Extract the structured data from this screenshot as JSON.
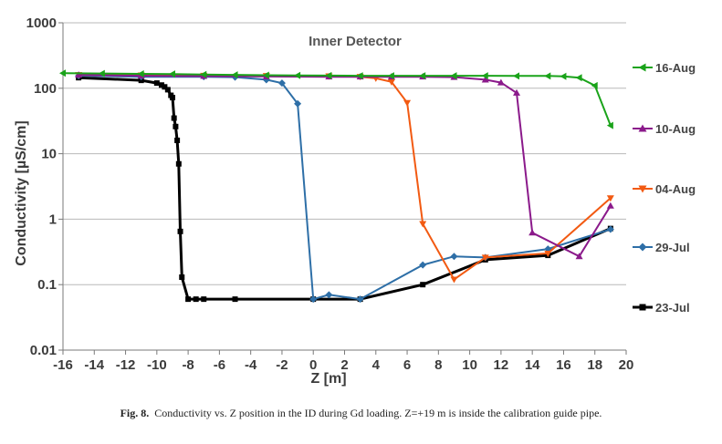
{
  "chart_data": {
    "type": "line",
    "title": "Inner Detector",
    "xlabel": "Z [m]",
    "ylabel": "Conductivity [µS/cm]",
    "xlim": [
      -16,
      20
    ],
    "ylim": [
      0.01,
      1000
    ],
    "yscale": "log",
    "x_ticks": [
      -16,
      -14,
      -12,
      -10,
      -8,
      -6,
      -4,
      -2,
      0,
      2,
      4,
      6,
      8,
      10,
      12,
      14,
      16,
      18,
      20
    ],
    "y_ticks": [
      0.01,
      0.1,
      1,
      10,
      100,
      1000
    ],
    "y_tick_labels": [
      "0.01",
      "0.1",
      "1",
      "10",
      "100",
      "1000"
    ],
    "grid": "horizontal",
    "legend_position": "right",
    "series": [
      {
        "name": "16-Aug",
        "color": "#1aa31a",
        "marker": "triangle-left",
        "x": [
          -16,
          -13.5,
          -11,
          -9,
          -7,
          -5,
          -3,
          -1,
          1,
          3,
          5,
          7,
          9,
          11,
          13,
          15,
          16,
          17,
          18,
          19
        ],
        "y": [
          170,
          168,
          166,
          165,
          162,
          160,
          158,
          157,
          156,
          155,
          155,
          155,
          155,
          155,
          154,
          154,
          152,
          145,
          110,
          27
        ]
      },
      {
        "name": "10-Aug",
        "color": "#8b1a8b",
        "marker": "triangle-up",
        "x": [
          -15,
          -11,
          -7,
          -3,
          1,
          3,
          5,
          7,
          9,
          11,
          12,
          13,
          14,
          17,
          19
        ],
        "y": [
          160,
          155,
          153,
          151,
          150,
          150,
          150,
          150,
          148,
          135,
          122,
          85,
          0.62,
          0.27,
          1.6
        ]
      },
      {
        "name": "04-Aug",
        "color": "#f25a12",
        "marker": "triangle-down",
        "x": [
          -15,
          -11,
          -7,
          -3,
          1,
          3,
          4,
          5,
          6,
          7,
          9,
          11,
          15,
          19
        ],
        "y": [
          160,
          158,
          156,
          155,
          153,
          150,
          142,
          125,
          60,
          0.85,
          0.12,
          0.26,
          0.3,
          2.1
        ]
      },
      {
        "name": "29-Jul",
        "color": "#2e6fa7",
        "marker": "diamond",
        "x": [
          -15,
          -11,
          -7,
          -5,
          -3,
          -2,
          -1,
          0,
          1,
          3,
          7,
          9,
          11,
          15,
          19
        ],
        "y": [
          155,
          150,
          150,
          148,
          135,
          120,
          58,
          0.06,
          0.07,
          0.06,
          0.2,
          0.27,
          0.26,
          0.35,
          0.7
        ]
      },
      {
        "name": "23-Jul",
        "color": "#000000",
        "marker": "square",
        "x": [
          -15,
          -11,
          -10,
          -9.7,
          -9.5,
          -9.3,
          -9.1,
          -9,
          -8.9,
          -8.8,
          -8.7,
          -8.6,
          -8.5,
          -8.4,
          -8,
          -7.5,
          -7,
          -5,
          0,
          3,
          7,
          11,
          15,
          19
        ],
        "y": [
          145,
          132,
          120,
          112,
          105,
          95,
          78,
          72,
          35,
          26,
          16,
          7,
          0.65,
          0.13,
          0.06,
          0.06,
          0.06,
          0.06,
          0.06,
          0.06,
          0.1,
          0.24,
          0.28,
          0.72
        ]
      }
    ]
  },
  "caption": {
    "label": "Fig. 8.",
    "text": "Conductivity vs. Z position in the ID during Gd loading. Z=+19 m is inside the calibration guide pipe."
  }
}
